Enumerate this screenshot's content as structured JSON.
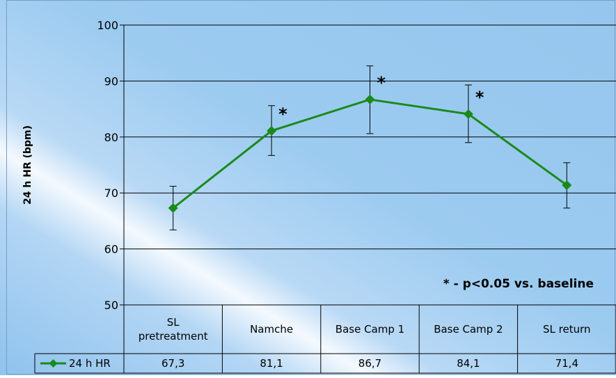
{
  "chart_data": {
    "type": "line",
    "ylabel": "24 h HR (bpm)",
    "ylim": [
      50,
      100
    ],
    "yticks": [
      50,
      60,
      70,
      80,
      90,
      100
    ],
    "grid": true,
    "categories": [
      [
        "SL",
        "pretreatment"
      ],
      [
        "Namche"
      ],
      [
        "Base Camp 1"
      ],
      [
        "Base Camp 2"
      ],
      [
        "SL return"
      ]
    ],
    "series": [
      {
        "name": "24 h HR",
        "color": "#1a8a1a",
        "values": [
          67.3,
          81.1,
          86.7,
          84.1,
          71.4
        ],
        "value_labels": [
          "67,3",
          "81,1",
          "86,7",
          "84,1",
          "71,4"
        ],
        "error_low": [
          63.4,
          76.7,
          80.6,
          79.0,
          67.3
        ],
        "error_high": [
          71.2,
          85.6,
          92.7,
          89.3,
          75.4
        ],
        "significant": [
          false,
          true,
          true,
          true,
          false
        ]
      }
    ],
    "significance_marker": "*",
    "annotation": "* - p<0.05 vs. baseline"
  }
}
